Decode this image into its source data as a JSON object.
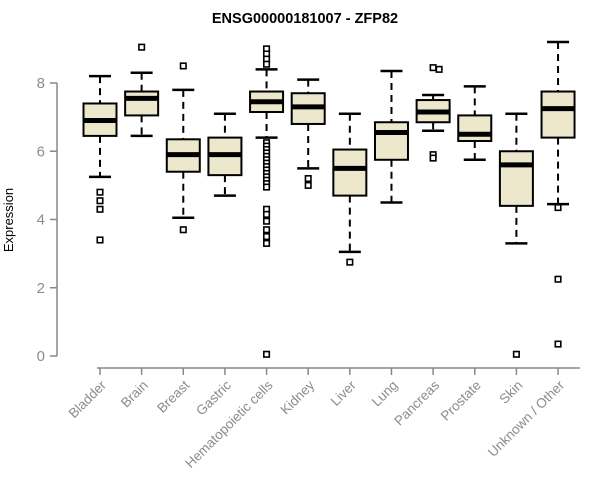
{
  "title": "ENSG00000181007 - ZFP82",
  "colors": {
    "box_fill": "#EDE8CC",
    "box_border": "#000000",
    "median": "#000000",
    "whisker": "#000000",
    "outlier_stroke": "#000000",
    "axis_line": "#888888",
    "axis_text": "#8c8c8c",
    "title_text": "#000000",
    "background": "#ffffff"
  },
  "chart_data": {
    "type": "boxplot",
    "title": "ENSG00000181007 - ZFP82",
    "xlabel": "",
    "ylabel": "Expression",
    "ylim": [
      -0.35,
      9.5
    ],
    "y_ticks": [
      0,
      2,
      4,
      6,
      8
    ],
    "grid": false,
    "legend": false,
    "categories": [
      "Bladder",
      "Brain",
      "Breast",
      "Gastric",
      "Hematopoietic cells",
      "Kidney",
      "Liver",
      "Lung",
      "Pancreas",
      "Prostate",
      "Skin",
      "Unknown / Other"
    ],
    "series": [
      {
        "name": "Bladder",
        "whisker_low": 5.25,
        "q1": 6.45,
        "median": 6.9,
        "q3": 7.4,
        "whisker_high": 8.2,
        "outliers": [
          4.8,
          4.55,
          4.3,
          3.4
        ]
      },
      {
        "name": "Brain",
        "whisker_low": 6.45,
        "q1": 7.05,
        "median": 7.55,
        "q3": 7.75,
        "whisker_high": 8.3,
        "outliers": [
          9.05
        ]
      },
      {
        "name": "Breast",
        "whisker_low": 4.05,
        "q1": 5.4,
        "median": 5.9,
        "q3": 6.35,
        "whisker_high": 7.8,
        "outliers": [
          8.5,
          3.7
        ]
      },
      {
        "name": "Gastric",
        "whisker_low": 4.7,
        "q1": 5.3,
        "median": 5.9,
        "q3": 6.4,
        "whisker_high": 7.1,
        "outliers": []
      },
      {
        "name": "Hematopoietic cells",
        "whisker_low": 6.4,
        "q1": 7.15,
        "median": 7.45,
        "q3": 7.75,
        "whisker_high": 8.4,
        "outliers": [
          9.0,
          8.85,
          8.7,
          8.55,
          6.25,
          6.15,
          6.05,
          5.95,
          5.85,
          5.75,
          5.65,
          5.55,
          5.45,
          5.35,
          5.25,
          5.15,
          5.05,
          4.95,
          4.3,
          4.15,
          3.95,
          3.7,
          3.5,
          3.3,
          0.05
        ]
      },
      {
        "name": "Kidney",
        "whisker_low": 5.5,
        "q1": 6.8,
        "median": 7.3,
        "q3": 7.7,
        "whisker_high": 8.1,
        "outliers": [
          5.2,
          5.0
        ]
      },
      {
        "name": "Liver",
        "whisker_low": 3.05,
        "q1": 4.7,
        "median": 5.5,
        "q3": 6.05,
        "whisker_high": 7.1,
        "outliers": [
          2.75
        ]
      },
      {
        "name": "Lung",
        "whisker_low": 4.5,
        "q1": 5.75,
        "median": 6.55,
        "q3": 6.85,
        "whisker_high": 8.35,
        "outliers": []
      },
      {
        "name": "Pancreas",
        "whisker_low": 6.6,
        "q1": 6.85,
        "median": 7.15,
        "q3": 7.5,
        "whisker_high": 7.65,
        "outliers": [
          8.45,
          8.4,
          5.9,
          5.8
        ]
      },
      {
        "name": "Prostate",
        "whisker_low": 5.75,
        "q1": 6.3,
        "median": 6.5,
        "q3": 7.05,
        "whisker_high": 7.9,
        "outliers": []
      },
      {
        "name": "Skin",
        "whisker_low": 3.3,
        "q1": 4.4,
        "median": 5.6,
        "q3": 6.0,
        "whisker_high": 7.1,
        "outliers": [
          0.05
        ]
      },
      {
        "name": "Unknown / Other",
        "whisker_low": 4.45,
        "q1": 6.4,
        "median": 7.25,
        "q3": 7.75,
        "whisker_high": 9.2,
        "outliers": [
          4.35,
          2.25,
          0.35
        ]
      }
    ]
  }
}
